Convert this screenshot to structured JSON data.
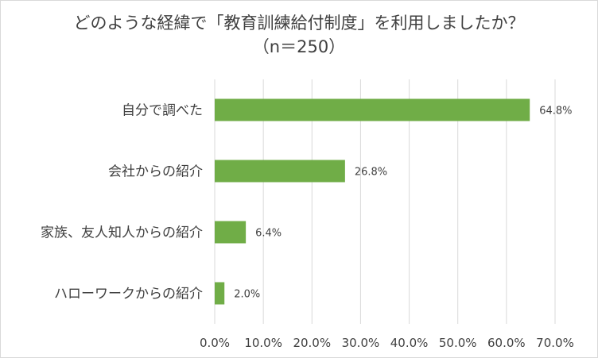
{
  "chart_data": {
    "type": "bar",
    "orientation": "horizontal",
    "title": "どのような経緯で「教育訓練給付制度」を利用しましたか？",
    "subtitle": "（n＝250）",
    "categories": [
      "自分で調べた",
      "会社からの紹介",
      "家族、友人知人からの紹介",
      "ハローワークからの紹介"
    ],
    "values": [
      64.8,
      26.8,
      6.4,
      2.0
    ],
    "data_labels": [
      "64.8%",
      "26.8%",
      "6.4%",
      "2.0%"
    ],
    "xlim": [
      0,
      70
    ],
    "x_ticks": [
      "0.0%",
      "10.0%",
      "20.0%",
      "30.0%",
      "40.0%",
      "50.0%",
      "60.0%",
      "70.0%"
    ],
    "grid": true,
    "legend": "none",
    "bar_color": "#70ad47",
    "grid_color": "#d9d9d9"
  }
}
